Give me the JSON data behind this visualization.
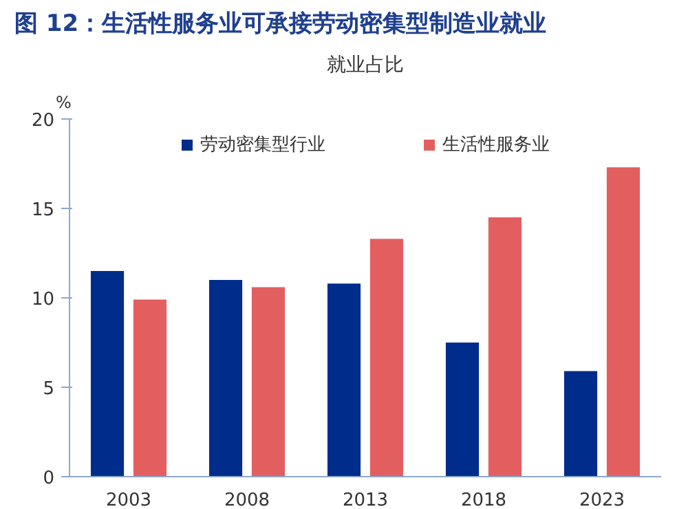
{
  "chart_data": {
    "type": "bar",
    "title": "图 12：生活性服务业可承接劳动密集型制造业就业",
    "subtitle": "就业占比",
    "ylabel": "%",
    "categories": [
      "2003",
      "2008",
      "2013",
      "2018",
      "2023"
    ],
    "series": [
      {
        "name": "劳动密集型行业",
        "color": "#002c8c",
        "values": [
          11.5,
          11.0,
          10.8,
          7.5,
          5.9
        ]
      },
      {
        "name": "生活性服务业",
        "color": "#e35f5f",
        "values": [
          9.9,
          10.6,
          13.3,
          14.5,
          17.3
        ]
      }
    ],
    "ylim": [
      0,
      20
    ],
    "yticks": [
      0,
      5,
      10,
      15,
      20
    ],
    "grid": false,
    "legend": "top"
  }
}
